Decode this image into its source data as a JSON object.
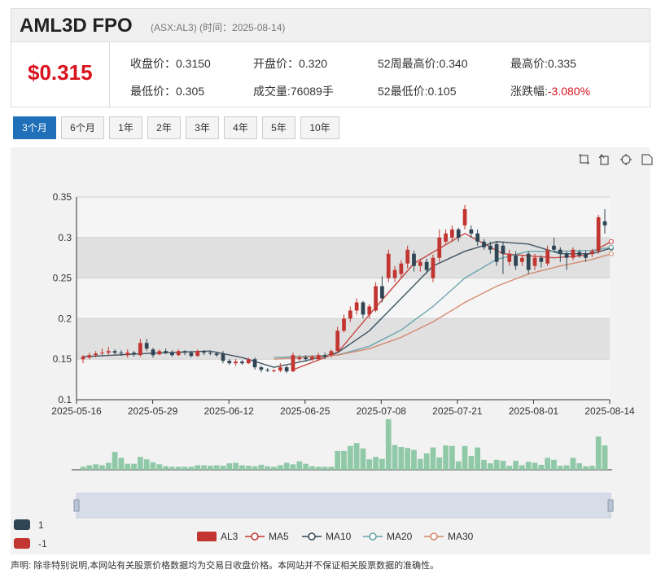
{
  "header": {
    "name": "AML3D FPO",
    "meta": "(ASX:AL3) (时间：2025-08-14)"
  },
  "quote": {
    "price": "$0.315",
    "fields": [
      {
        "label": "收盘价：",
        "value": "0.3150"
      },
      {
        "label": "开盘价：",
        "value": "0.320"
      },
      {
        "label": "52周最高价:",
        "value": "0.340"
      },
      {
        "label": "最高价:",
        "value": "0.335"
      },
      {
        "label": "最低价：",
        "value": "0.305"
      },
      {
        "label": "成交量:",
        "value": "76089手"
      },
      {
        "label": "52最低价:",
        "value": "0.105"
      },
      {
        "label": "涨跌幅:",
        "value": "-3.080%"
      }
    ]
  },
  "tabs": [
    "3个月",
    "6个月",
    "1年",
    "2年",
    "3年",
    "4年",
    "5年",
    "10年"
  ],
  "active_tab": 0,
  "toolbox": [
    "zoom-icon",
    "zoom-reset-icon",
    "restore-icon",
    "save-icon"
  ],
  "colors": {
    "up": "#c23531",
    "down": "#2f4554",
    "ma5": "#c23531",
    "ma10": "#2f4554",
    "ma20": "#61a0a8",
    "ma30": "#d48265",
    "volume": "#8fc9a7",
    "accent": "#1f6fb9"
  },
  "legend_left": [
    {
      "label": "1",
      "color": "#2f4554"
    },
    {
      "label": "-1",
      "color": "#c23531"
    }
  ],
  "disclaimer": "声明: 除非特别说明,本网站有关股票价格数据均为交易日收盘价格。本网站并不保证相关股票数据的准确性。",
  "chart_data": {
    "type": "candlestick",
    "xlabels": [
      "2025-05-16",
      "2025-05-29",
      "2025-06-12",
      "2025-06-25",
      "2025-07-08",
      "2025-07-21",
      "2025-08-01",
      "2025-08-14"
    ],
    "ylabels": [
      "0.35",
      "0.3",
      "0.25",
      "0.2",
      "0.15",
      "0.1"
    ],
    "ylim": [
      0.1,
      0.35
    ],
    "legend": [
      "AL3",
      "MA5",
      "MA10",
      "MA20",
      "MA30"
    ],
    "candles": [
      {
        "o": 0.15,
        "c": 0.153,
        "h": 0.155,
        "l": 0.145,
        "v": 6
      },
      {
        "o": 0.152,
        "c": 0.155,
        "h": 0.158,
        "l": 0.15,
        "v": 9
      },
      {
        "o": 0.155,
        "c": 0.157,
        "h": 0.16,
        "l": 0.152,
        "v": 11
      },
      {
        "o": 0.157,
        "c": 0.158,
        "h": 0.163,
        "l": 0.155,
        "v": 9
      },
      {
        "o": 0.158,
        "c": 0.16,
        "h": 0.165,
        "l": 0.155,
        "v": 14
      },
      {
        "o": 0.16,
        "c": 0.158,
        "h": 0.162,
        "l": 0.155,
        "v": 36
      },
      {
        "o": 0.158,
        "c": 0.157,
        "h": 0.161,
        "l": 0.154,
        "v": 24
      },
      {
        "o": 0.155,
        "c": 0.158,
        "h": 0.162,
        "l": 0.152,
        "v": 12
      },
      {
        "o": 0.158,
        "c": 0.156,
        "h": 0.16,
        "l": 0.153,
        "v": 12
      },
      {
        "o": 0.155,
        "c": 0.17,
        "h": 0.175,
        "l": 0.153,
        "v": 26
      },
      {
        "o": 0.17,
        "c": 0.163,
        "h": 0.175,
        "l": 0.16,
        "v": 21
      },
      {
        "o": 0.162,
        "c": 0.155,
        "h": 0.164,
        "l": 0.152,
        "v": 15
      },
      {
        "o": 0.156,
        "c": 0.16,
        "h": 0.162,
        "l": 0.155,
        "v": 11
      },
      {
        "o": 0.16,
        "c": 0.158,
        "h": 0.163,
        "l": 0.156,
        "v": 7
      },
      {
        "o": 0.158,
        "c": 0.155,
        "h": 0.161,
        "l": 0.153,
        "v": 6
      },
      {
        "o": 0.155,
        "c": 0.16,
        "h": 0.162,
        "l": 0.154,
        "v": 6
      },
      {
        "o": 0.16,
        "c": 0.158,
        "h": 0.161,
        "l": 0.155,
        "v": 6
      },
      {
        "o": 0.158,
        "c": 0.154,
        "h": 0.16,
        "l": 0.152,
        "v": 6
      },
      {
        "o": 0.154,
        "c": 0.16,
        "h": 0.162,
        "l": 0.153,
        "v": 9
      },
      {
        "o": 0.16,
        "c": 0.158,
        "h": 0.161,
        "l": 0.155,
        "v": 9
      },
      {
        "o": 0.158,
        "c": 0.157,
        "h": 0.16,
        "l": 0.155,
        "v": 8
      },
      {
        "o": 0.157,
        "c": 0.155,
        "h": 0.159,
        "l": 0.153,
        "v": 9
      },
      {
        "o": 0.157,
        "c": 0.148,
        "h": 0.16,
        "l": 0.145,
        "v": 8
      },
      {
        "o": 0.148,
        "c": 0.145,
        "h": 0.15,
        "l": 0.143,
        "v": 13
      },
      {
        "o": 0.145,
        "c": 0.147,
        "h": 0.15,
        "l": 0.142,
        "v": 14
      },
      {
        "o": 0.147,
        "c": 0.145,
        "h": 0.149,
        "l": 0.143,
        "v": 9
      },
      {
        "o": 0.145,
        "c": 0.15,
        "h": 0.152,
        "l": 0.144,
        "v": 8
      },
      {
        "o": 0.15,
        "c": 0.14,
        "h": 0.152,
        "l": 0.137,
        "v": 7
      },
      {
        "o": 0.14,
        "c": 0.137,
        "h": 0.142,
        "l": 0.134,
        "v": 10
      },
      {
        "o": 0.137,
        "c": 0.136,
        "h": 0.139,
        "l": 0.134,
        "v": 7
      },
      {
        "o": 0.136,
        "c": 0.136,
        "h": 0.138,
        "l": 0.134,
        "v": 6
      },
      {
        "o": 0.136,
        "c": 0.14,
        "h": 0.145,
        "l": 0.134,
        "v": 9
      },
      {
        "o": 0.14,
        "c": 0.135,
        "h": 0.142,
        "l": 0.133,
        "v": 14
      },
      {
        "o": 0.135,
        "c": 0.155,
        "h": 0.158,
        "l": 0.134,
        "v": 11
      },
      {
        "o": 0.15,
        "c": 0.152,
        "h": 0.155,
        "l": 0.148,
        "v": 17
      },
      {
        "o": 0.152,
        "c": 0.15,
        "h": 0.155,
        "l": 0.147,
        "v": 12
      },
      {
        "o": 0.15,
        "c": 0.153,
        "h": 0.155,
        "l": 0.148,
        "v": 7
      },
      {
        "o": 0.15,
        "c": 0.155,
        "h": 0.158,
        "l": 0.148,
        "v": 6
      },
      {
        "o": 0.155,
        "c": 0.153,
        "h": 0.158,
        "l": 0.15,
        "v": 6
      },
      {
        "o": 0.155,
        "c": 0.16,
        "h": 0.162,
        "l": 0.152,
        "v": 6
      },
      {
        "o": 0.16,
        "c": 0.185,
        "h": 0.19,
        "l": 0.158,
        "v": 38
      },
      {
        "o": 0.185,
        "c": 0.2,
        "h": 0.205,
        "l": 0.183,
        "v": 38
      },
      {
        "o": 0.2,
        "c": 0.21,
        "h": 0.215,
        "l": 0.196,
        "v": 48
      },
      {
        "o": 0.21,
        "c": 0.22,
        "h": 0.225,
        "l": 0.205,
        "v": 54
      },
      {
        "o": 0.22,
        "c": 0.205,
        "h": 0.222,
        "l": 0.2,
        "v": 43
      },
      {
        "o": 0.205,
        "c": 0.215,
        "h": 0.218,
        "l": 0.2,
        "v": 21
      },
      {
        "o": 0.21,
        "c": 0.24,
        "h": 0.245,
        "l": 0.208,
        "v": 26
      },
      {
        "o": 0.24,
        "c": 0.225,
        "h": 0.252,
        "l": 0.22,
        "v": 22
      },
      {
        "o": 0.25,
        "c": 0.28,
        "h": 0.285,
        "l": 0.245,
        "v": 102
      },
      {
        "o": 0.25,
        "c": 0.26,
        "h": 0.265,
        "l": 0.245,
        "v": 50
      },
      {
        "o": 0.255,
        "c": 0.268,
        "h": 0.272,
        "l": 0.25,
        "v": 46
      },
      {
        "o": 0.268,
        "c": 0.285,
        "h": 0.29,
        "l": 0.262,
        "v": 44
      },
      {
        "o": 0.28,
        "c": 0.265,
        "h": 0.284,
        "l": 0.258,
        "v": 40
      },
      {
        "o": 0.265,
        "c": 0.27,
        "h": 0.274,
        "l": 0.258,
        "v": 22
      },
      {
        "o": 0.27,
        "c": 0.26,
        "h": 0.274,
        "l": 0.256,
        "v": 33
      },
      {
        "o": 0.25,
        "c": 0.275,
        "h": 0.279,
        "l": 0.245,
        "v": 45
      },
      {
        "o": 0.275,
        "c": 0.3,
        "h": 0.31,
        "l": 0.27,
        "v": 25
      },
      {
        "o": 0.295,
        "c": 0.305,
        "h": 0.31,
        "l": 0.292,
        "v": 49
      },
      {
        "o": 0.3,
        "c": 0.31,
        "h": 0.315,
        "l": 0.295,
        "v": 48
      },
      {
        "o": 0.31,
        "c": 0.3,
        "h": 0.312,
        "l": 0.295,
        "v": 17
      },
      {
        "o": 0.315,
        "c": 0.335,
        "h": 0.34,
        "l": 0.31,
        "v": 48
      },
      {
        "o": 0.31,
        "c": 0.305,
        "h": 0.315,
        "l": 0.3,
        "v": 28
      },
      {
        "o": 0.305,
        "c": 0.295,
        "h": 0.31,
        "l": 0.29,
        "v": 45
      },
      {
        "o": 0.295,
        "c": 0.288,
        "h": 0.298,
        "l": 0.285,
        "v": 20
      },
      {
        "o": 0.29,
        "c": 0.285,
        "h": 0.295,
        "l": 0.28,
        "v": 13
      },
      {
        "o": 0.292,
        "c": 0.27,
        "h": 0.295,
        "l": 0.265,
        "v": 20
      },
      {
        "o": 0.29,
        "c": 0.28,
        "h": 0.295,
        "l": 0.255,
        "v": 18
      },
      {
        "o": 0.27,
        "c": 0.28,
        "h": 0.285,
        "l": 0.265,
        "v": 8
      },
      {
        "o": 0.278,
        "c": 0.265,
        "h": 0.283,
        "l": 0.26,
        "v": 18
      },
      {
        "o": 0.27,
        "c": 0.275,
        "h": 0.278,
        "l": 0.265,
        "v": 9
      },
      {
        "o": 0.28,
        "c": 0.26,
        "h": 0.283,
        "l": 0.255,
        "v": 16
      },
      {
        "o": 0.265,
        "c": 0.275,
        "h": 0.28,
        "l": 0.26,
        "v": 14
      },
      {
        "o": 0.275,
        "c": 0.27,
        "h": 0.278,
        "l": 0.263,
        "v": 10
      },
      {
        "o": 0.268,
        "c": 0.285,
        "h": 0.29,
        "l": 0.265,
        "v": 24
      },
      {
        "o": 0.29,
        "c": 0.285,
        "h": 0.3,
        "l": 0.282,
        "v": 20
      },
      {
        "o": 0.285,
        "c": 0.28,
        "h": 0.288,
        "l": 0.27,
        "v": 8
      },
      {
        "o": 0.28,
        "c": 0.275,
        "h": 0.283,
        "l": 0.26,
        "v": 9
      },
      {
        "o": 0.275,
        "c": 0.285,
        "h": 0.288,
        "l": 0.272,
        "v": 24
      },
      {
        "o": 0.282,
        "c": 0.278,
        "h": 0.285,
        "l": 0.275,
        "v": 13
      },
      {
        "o": 0.28,
        "c": 0.275,
        "h": 0.284,
        "l": 0.27,
        "v": 7
      },
      {
        "o": 0.28,
        "c": 0.283,
        "h": 0.286,
        "l": 0.276,
        "v": 8
      },
      {
        "o": 0.283,
        "c": 0.325,
        "h": 0.328,
        "l": 0.28,
        "v": 67
      },
      {
        "o": 0.32,
        "c": 0.315,
        "h": 0.335,
        "l": 0.305,
        "v": 49
      }
    ],
    "ma_points": {
      "ma5": [
        [
          33,
          0.137
        ],
        [
          40,
          0.158
        ],
        [
          45,
          0.205
        ],
        [
          48,
          0.232
        ],
        [
          52,
          0.268
        ],
        [
          60,
          0.305
        ],
        [
          66,
          0.28
        ],
        [
          74,
          0.275
        ],
        [
          79,
          0.278
        ],
        [
          83,
          0.295
        ]
      ],
      "ma10": [
        [
          0,
          0.153
        ],
        [
          10,
          0.157
        ],
        [
          20,
          0.16
        ],
        [
          25,
          0.152
        ],
        [
          30,
          0.14
        ],
        [
          35,
          0.148
        ],
        [
          40,
          0.158
        ],
        [
          45,
          0.185
        ],
        [
          50,
          0.225
        ],
        [
          55,
          0.265
        ],
        [
          60,
          0.283
        ],
        [
          65,
          0.295
        ],
        [
          70,
          0.292
        ],
        [
          75,
          0.28
        ],
        [
          80,
          0.28
        ],
        [
          83,
          0.287
        ]
      ],
      "ma20": [
        [
          30,
          0.152
        ],
        [
          40,
          0.155
        ],
        [
          45,
          0.166
        ],
        [
          50,
          0.186
        ],
        [
          55,
          0.215
        ],
        [
          60,
          0.25
        ],
        [
          65,
          0.273
        ],
        [
          70,
          0.283
        ],
        [
          75,
          0.283
        ],
        [
          80,
          0.284
        ],
        [
          83,
          0.288
        ]
      ],
      "ma30": [
        [
          30,
          0.15
        ],
        [
          40,
          0.155
        ],
        [
          45,
          0.163
        ],
        [
          50,
          0.177
        ],
        [
          55,
          0.196
        ],
        [
          60,
          0.22
        ],
        [
          65,
          0.24
        ],
        [
          70,
          0.255
        ],
        [
          75,
          0.265
        ],
        [
          80,
          0.273
        ],
        [
          83,
          0.28
        ]
      ]
    },
    "volume_scale": "relative",
    "grid": true,
    "dataZoom": [
      0,
      100
    ]
  }
}
